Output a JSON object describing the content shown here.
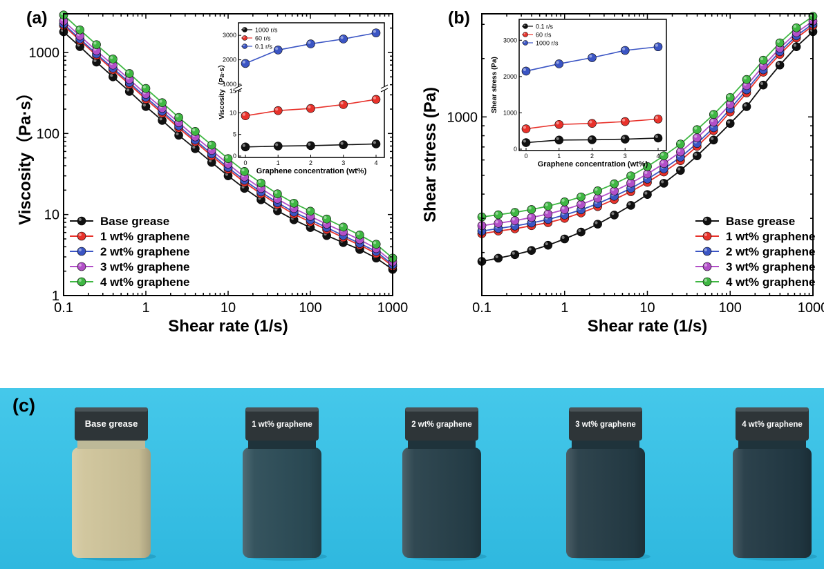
{
  "panels": {
    "a": {
      "label": "(a)"
    },
    "b": {
      "label": "(b)"
    },
    "c": {
      "label": "(c)"
    }
  },
  "colors": {
    "base": "#111111",
    "g1": "#e8322b",
    "g2": "#3b55c4",
    "g3": "#b24fc8",
    "g4": "#3fb743",
    "photo_bg": "#3cc3e6"
  },
  "chart_data": [
    {
      "id": "a-main",
      "type": "line",
      "xlabel": "Shear rate (1/s)",
      "ylabel": "Viscosity（Pa·s）",
      "xscale": "log",
      "yscale": "log",
      "xlim": [
        0.1,
        1000
      ],
      "ylim": [
        1,
        3000
      ],
      "xticks": [
        "0.1",
        "1",
        "10",
        "100",
        "1000"
      ],
      "yticks": [
        "1",
        "10",
        "100",
        "1000"
      ],
      "legend": "bottom-left",
      "x": [
        0.1,
        0.158,
        0.251,
        0.398,
        0.631,
        1,
        1.58,
        2.51,
        3.98,
        6.31,
        10,
        15.8,
        25.1,
        39.8,
        63.1,
        100,
        158,
        251,
        398,
        631,
        1000
      ],
      "series": [
        {
          "name": "Base grease",
          "values": [
            1800,
            1180,
            760,
            500,
            330,
            215,
            145,
            95,
            65,
            44,
            30,
            21,
            15.2,
            11.1,
            8.6,
            6.9,
            5.5,
            4.5,
            3.7,
            2.9,
            2.1
          ]
        },
        {
          "name": "1 wt% graphene",
          "values": [
            2150,
            1410,
            920,
            610,
            405,
            265,
            178,
            117,
            79,
            53,
            36,
            25,
            18,
            13.3,
            10.1,
            8.1,
            6.5,
            5.2,
            4.2,
            3.3,
            2.3
          ]
        },
        {
          "name": "2 wt% graphene",
          "values": [
            2250,
            1470,
            960,
            640,
            425,
            280,
            188,
            124,
            83,
            56,
            38,
            26.5,
            19,
            14,
            10.7,
            8.6,
            6.9,
            5.5,
            4.4,
            3.5,
            2.4
          ]
        },
        {
          "name": "3 wt% graphene",
          "values": [
            2450,
            1600,
            1050,
            700,
            465,
            305,
            205,
            136,
            91,
            62,
            42,
            29,
            21,
            15.5,
            11.9,
            9.5,
            7.6,
            6.1,
            4.9,
            3.8,
            2.6
          ]
        },
        {
          "name": "4 wt% graphene",
          "values": [
            2900,
            1900,
            1250,
            830,
            550,
            360,
            240,
            158,
            106,
            72,
            49,
            34,
            24.5,
            18,
            13.8,
            11,
            8.8,
            7,
            5.6,
            4.3,
            2.9
          ]
        }
      ]
    },
    {
      "id": "a-inset",
      "type": "line",
      "xlabel": "Graphene concentration (wt%)",
      "ylabel": "Viscosity（Pa·s）",
      "xlim": [
        0,
        4
      ],
      "xticks": [
        "0",
        "1",
        "2",
        "3",
        "4"
      ],
      "yticks_lower": [
        "0",
        "5",
        "10",
        "15"
      ],
      "yticks_upper": [
        "1000",
        "2000",
        "3000"
      ],
      "broken_axis": true,
      "legend": "top-left",
      "x": [
        0,
        1,
        2,
        3,
        4
      ],
      "series": [
        {
          "name": "1000 r/s",
          "values": [
            2.1,
            2.3,
            2.4,
            2.6,
            2.8
          ]
        },
        {
          "name": "60 r/s",
          "values": [
            9.3,
            10.5,
            11.0,
            11.9,
            13.1
          ]
        },
        {
          "name": "0.1 r/s",
          "values": [
            1850,
            2400,
            2650,
            2850,
            3100
          ]
        }
      ]
    },
    {
      "id": "b-main",
      "type": "line",
      "xlabel": "Shear rate (1/s)",
      "ylabel": "Shear stress (Pa)",
      "xscale": "log",
      "yscale": "log",
      "xlim": [
        0.1,
        1000
      ],
      "ylim": [
        120,
        3400
      ],
      "xticks": [
        "0.1",
        "1",
        "10",
        "100",
        "1000"
      ],
      "yticks": [
        "1000"
      ],
      "legend": "bottom-right",
      "x": [
        0.1,
        0.158,
        0.251,
        0.398,
        0.631,
        1,
        1.58,
        2.51,
        3.98,
        6.31,
        10,
        15.8,
        25.1,
        39.8,
        63.1,
        100,
        158,
        251,
        398,
        631,
        1000
      ],
      "series": [
        {
          "name": "Base grease",
          "values": [
            180,
            187,
            195,
            205,
            218,
            235,
            255,
            280,
            312,
            350,
            398,
            455,
            530,
            630,
            760,
            925,
            1130,
            1460,
            1850,
            2300,
            2750
          ]
        },
        {
          "name": "1 wt% graphene",
          "values": [
            250,
            258,
            265,
            275,
            285,
            300,
            320,
            345,
            375,
            412,
            460,
            520,
            595,
            705,
            850,
            1060,
            1330,
            1700,
            2100,
            2550,
            2950
          ]
        },
        {
          "name": "2 wt% graphene",
          "values": [
            258,
            266,
            274,
            284,
            296,
            312,
            332,
            357,
            390,
            428,
            478,
            540,
            620,
            730,
            880,
            1100,
            1380,
            1750,
            2170,
            2620,
            3020
          ]
        },
        {
          "name": "3 wt% graphene",
          "values": [
            275,
            283,
            292,
            303,
            316,
            333,
            354,
            381,
            415,
            456,
            508,
            575,
            660,
            780,
            940,
            1160,
            1450,
            1830,
            2260,
            2720,
            3120
          ]
        },
        {
          "name": "4 wt% graphene",
          "values": [
            305,
            313,
            322,
            333,
            347,
            365,
            387,
            416,
            452,
            497,
            555,
            630,
            725,
            860,
            1030,
            1260,
            1560,
            1960,
            2410,
            2880,
            3300
          ]
        }
      ]
    },
    {
      "id": "b-inset",
      "type": "line",
      "xlabel": "Graphene concentration (wt%)",
      "ylabel": "Shear stress (Pa)",
      "xlim": [
        0,
        4
      ],
      "ylim": [
        0,
        3500
      ],
      "xticks": [
        "0",
        "1",
        "2",
        "3",
        "4"
      ],
      "yticks": [
        "0",
        "1000",
        "2000",
        "3000"
      ],
      "legend": "top-left",
      "x": [
        0,
        1,
        2,
        3,
        4
      ],
      "series": [
        {
          "name": "0.1 r/s",
          "values": [
            180,
            250,
            258,
            275,
            305
          ]
        },
        {
          "name": "60 r/s",
          "values": [
            560,
            680,
            710,
            760,
            830
          ]
        },
        {
          "name": "1000 r/s",
          "values": [
            2150,
            2350,
            2520,
            2720,
            2820
          ]
        }
      ]
    }
  ],
  "photo": {
    "jars": [
      {
        "label": "Base grease",
        "fill": "#cfc49a"
      },
      {
        "label": "1 wt% graphene",
        "fill": "#2b4b56"
      },
      {
        "label": "2 wt% graphene",
        "fill": "#263f49"
      },
      {
        "label": "3 wt% graphene",
        "fill": "#243b45"
      },
      {
        "label": "4 wt% graphene",
        "fill": "#213843"
      }
    ]
  }
}
